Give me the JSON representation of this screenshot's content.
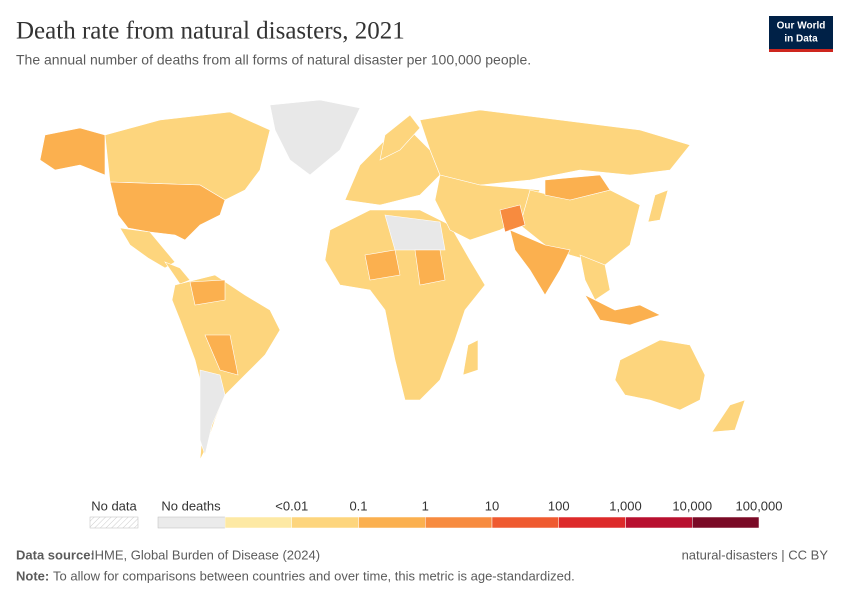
{
  "header": {
    "title": "Death rate from natural disasters, 2021",
    "subtitle": "The annual number of deaths from all forms of natural disaster per 100,000 people.",
    "logo": [
      "Our World",
      "in Data"
    ]
  },
  "legend": {
    "no_data": "No data",
    "no_deaths": "No deaths",
    "colors": [
      "#fde9a4",
      "#fdd57d",
      "#fbb04f",
      "#f78b3f",
      "#ef5a30",
      "#dd2a2a",
      "#b8102f",
      "#7a0a26"
    ],
    "labels": [
      "<0.01",
      "0.1",
      "1",
      "10",
      "100",
      "1,000",
      "10,000",
      "100,000"
    ]
  },
  "footer": {
    "source_label": "Data source:",
    "source": "IHME, Global Burden of Disease (2024)",
    "license": "natural-disasters | CC BY",
    "note_label": "Note:",
    "note": "To allow for comparisons between countries and over time, this metric is age-standardized."
  }
}
